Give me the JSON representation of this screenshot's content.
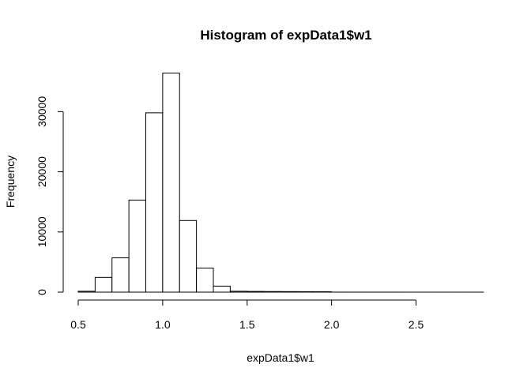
{
  "chart_data": {
    "type": "bar",
    "title": "Histogram of expData1$w1",
    "xlabel": "expData1$w1",
    "ylabel": "Frequency",
    "bin_width": 0.1,
    "bins": [
      {
        "start": 0.5,
        "end": 0.6,
        "count": 150
      },
      {
        "start": 0.6,
        "end": 0.7,
        "count": 2450
      },
      {
        "start": 0.7,
        "end": 0.8,
        "count": 5700
      },
      {
        "start": 0.8,
        "end": 0.9,
        "count": 15300
      },
      {
        "start": 0.9,
        "end": 1.0,
        "count": 29800
      },
      {
        "start": 1.0,
        "end": 1.1,
        "count": 36400
      },
      {
        "start": 1.1,
        "end": 1.2,
        "count": 11900
      },
      {
        "start": 1.2,
        "end": 1.3,
        "count": 4000
      },
      {
        "start": 1.3,
        "end": 1.4,
        "count": 1000
      },
      {
        "start": 1.4,
        "end": 1.5,
        "count": 150
      },
      {
        "start": 1.5,
        "end": 1.6,
        "count": 120
      },
      {
        "start": 1.6,
        "end": 1.7,
        "count": 100
      },
      {
        "start": 1.7,
        "end": 1.8,
        "count": 90
      },
      {
        "start": 1.8,
        "end": 1.9,
        "count": 80
      },
      {
        "start": 1.9,
        "end": 2.0,
        "count": 70
      },
      {
        "start": 2.0,
        "end": 2.1,
        "count": 5
      },
      {
        "start": 2.1,
        "end": 2.2,
        "count": 3
      },
      {
        "start": 2.2,
        "end": 2.3,
        "count": 2
      },
      {
        "start": 2.3,
        "end": 2.4,
        "count": 2
      },
      {
        "start": 2.4,
        "end": 2.5,
        "count": 1
      },
      {
        "start": 2.5,
        "end": 2.6,
        "count": 1
      },
      {
        "start": 2.6,
        "end": 2.7,
        "count": 1
      },
      {
        "start": 2.7,
        "end": 2.8,
        "count": 1
      },
      {
        "start": 2.8,
        "end": 2.9,
        "count": 1
      }
    ],
    "xlim": [
      0.5,
      2.9
    ],
    "ylim": [
      0,
      37000
    ],
    "x_ticks": [
      0.5,
      1.0,
      1.5,
      2.0,
      2.5
    ],
    "x_tick_labels": [
      "0.5",
      "1.0",
      "1.5",
      "2.0",
      "2.5"
    ],
    "y_ticks": [
      0,
      10000,
      20000,
      30000
    ],
    "y_tick_labels": [
      "0",
      "10000",
      "20000",
      "30000"
    ],
    "grid": false,
    "colors": {
      "bar_fill": "#ffffff",
      "bar_stroke": "#000000"
    }
  }
}
